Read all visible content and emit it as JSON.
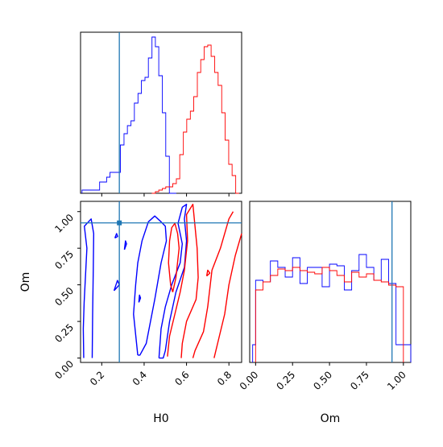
{
  "chart_data": [
    {
      "panel": "H0 marginal",
      "type": "histogram",
      "xlim": [
        0.1,
        0.86
      ],
      "truth_line": 0.283,
      "tick_marks": [
        0.2,
        0.4,
        0.6,
        0.8
      ],
      "series": [
        {
          "color": "#0000ff",
          "bin_edges": [
            0.107,
            0.124,
            0.14,
            0.157,
            0.173,
            0.19,
            0.206,
            0.223,
            0.239,
            0.255,
            0.272,
            0.288,
            0.305,
            0.321,
            0.338,
            0.354,
            0.371,
            0.387,
            0.404,
            0.42,
            0.437,
            0.453,
            0.469,
            0.486,
            0.502,
            0.519,
            0.535,
            0.552
          ],
          "counts": [
            0.02,
            0.02,
            0.02,
            0.02,
            0.02,
            0.07,
            0.07,
            0.1,
            0.13,
            0.13,
            0.13,
            0.3,
            0.37,
            0.42,
            0.45,
            0.56,
            0.62,
            0.7,
            0.72,
            0.84,
            0.97,
            0.91,
            0.73,
            0.5,
            0.23,
            0,
            0
          ]
        },
        {
          "color": "#ff0000",
          "bin_edges": [
            0.436,
            0.453,
            0.469,
            0.486,
            0.502,
            0.519,
            0.535,
            0.552,
            0.568,
            0.585,
            0.601,
            0.618,
            0.634,
            0.651,
            0.667,
            0.683,
            0.7,
            0.716,
            0.733,
            0.749,
            0.766,
            0.782,
            0.799,
            0.815,
            0.832,
            0.848
          ],
          "counts": [
            0,
            0.01,
            0.02,
            0.03,
            0.04,
            0.04,
            0.06,
            0.09,
            0.24,
            0.38,
            0.46,
            0.51,
            0.6,
            0.75,
            0.83,
            0.91,
            0.92,
            0.85,
            0.75,
            0.67,
            0.5,
            0.33,
            0.18,
            0.11,
            0
          ]
        }
      ]
    },
    {
      "panel": "H0 vs Om joint",
      "type": "contour",
      "xlabel": "H0",
      "ylabel": "Om",
      "xlim": [
        0.1,
        0.86
      ],
      "ylim": [
        -0.03,
        1.07
      ],
      "xticks": [
        "0.2",
        "0.4",
        "0.6",
        "0.8"
      ],
      "yticks": [
        "0.00",
        "0.25",
        "0.50",
        "0.75",
        "1.00"
      ],
      "truth_point": [
        0.283,
        0.923
      ],
      "contours": [
        {
          "color": "#0000ff",
          "points": [
            [
              0.115,
              0.0
            ],
            [
              0.113,
              0.2
            ],
            [
              0.117,
              0.38
            ],
            [
              0.124,
              0.58
            ],
            [
              0.13,
              0.75
            ],
            [
              0.118,
              0.9
            ],
            [
              0.15,
              0.95
            ],
            [
              0.162,
              0.85
            ],
            [
              0.16,
              0.6
            ],
            [
              0.157,
              0.3
            ],
            [
              0.155,
              0.0
            ]
          ]
        },
        {
          "color": "#0000ff",
          "points": [
            [
              0.258,
              0.46
            ],
            [
              0.283,
              0.5
            ],
            [
              0.274,
              0.53
            ],
            [
              0.258,
              0.46
            ]
          ]
        },
        {
          "color": "#0000ff",
          "points": [
            [
              0.262,
              0.82
            ],
            [
              0.275,
              0.83
            ],
            [
              0.27,
              0.85
            ],
            [
              0.262,
              0.82
            ]
          ]
        },
        {
          "color": "#0000ff",
          "points": [
            [
              0.37,
              0.02
            ],
            [
              0.35,
              0.3
            ],
            [
              0.36,
              0.5
            ],
            [
              0.37,
              0.65
            ],
            [
              0.39,
              0.8
            ],
            [
              0.42,
              0.93
            ],
            [
              0.45,
              0.97
            ],
            [
              0.48,
              0.93
            ],
            [
              0.5,
              0.9
            ],
            [
              0.505,
              0.8
            ],
            [
              0.48,
              0.65
            ],
            [
              0.45,
              0.4
            ],
            [
              0.43,
              0.25
            ],
            [
              0.41,
              0.1
            ],
            [
              0.38,
              0.02
            ],
            [
              0.37,
              0.02
            ]
          ]
        },
        {
          "color": "#0000ff",
          "points": [
            [
              0.47,
              0.0
            ],
            [
              0.48,
              0.2
            ],
            [
              0.5,
              0.35
            ],
            [
              0.53,
              0.5
            ],
            [
              0.57,
              0.65
            ],
            [
              0.58,
              0.78
            ],
            [
              0.56,
              0.92
            ],
            [
              0.58,
              1.03
            ],
            [
              0.6,
              1.05
            ],
            [
              0.59,
              0.95
            ],
            [
              0.6,
              0.8
            ],
            [
              0.59,
              0.62
            ],
            [
              0.55,
              0.45
            ],
            [
              0.52,
              0.25
            ],
            [
              0.5,
              0.05
            ],
            [
              0.49,
              0.0
            ],
            [
              0.47,
              0.0
            ]
          ]
        },
        {
          "color": "#0000ff",
          "points": [
            [
              0.307,
              0.74
            ],
            [
              0.317,
              0.78
            ],
            [
              0.312,
              0.8
            ],
            [
              0.307,
              0.74
            ]
          ]
        },
        {
          "color": "#0000ff",
          "points": [
            [
              0.375,
              0.38
            ],
            [
              0.383,
              0.41
            ],
            [
              0.378,
              0.43
            ],
            [
              0.375,
              0.38
            ]
          ]
        },
        {
          "color": "#ff0000",
          "points": [
            [
              0.535,
              0.45
            ],
            [
              0.55,
              0.55
            ],
            [
              0.565,
              0.75
            ],
            [
              0.558,
              0.85
            ],
            [
              0.545,
              0.92
            ],
            [
              0.53,
              0.89
            ],
            [
              0.52,
              0.8
            ],
            [
              0.515,
              0.65
            ],
            [
              0.525,
              0.5
            ],
            [
              0.535,
              0.45
            ]
          ]
        },
        {
          "color": "#ff0000",
          "points": [
            [
              0.51,
              0.01
            ],
            [
              0.52,
              0.15
            ],
            [
              0.545,
              0.3
            ],
            [
              0.57,
              0.45
            ],
            [
              0.59,
              0.6
            ],
            [
              0.605,
              0.8
            ],
            [
              0.6,
              0.98
            ],
            [
              0.63,
              1.05
            ],
            [
              0.64,
              0.9
            ],
            [
              0.65,
              0.75
            ],
            [
              0.655,
              0.55
            ],
            [
              0.645,
              0.4
            ],
            [
              0.6,
              0.25
            ],
            [
              0.58,
              0.1
            ],
            [
              0.575,
              0.0
            ]
          ]
        },
        {
          "color": "#ff0000",
          "points": [
            [
              0.63,
              0.0
            ],
            [
              0.64,
              0.05
            ],
            [
              0.68,
              0.18
            ],
            [
              0.7,
              0.35
            ],
            [
              0.72,
              0.6
            ],
            [
              0.76,
              0.75
            ],
            [
              0.8,
              0.95
            ],
            [
              0.82,
              1.0
            ]
          ]
        },
        {
          "color": "#ff0000",
          "points": [
            [
              0.73,
              0.0
            ],
            [
              0.75,
              0.12
            ],
            [
              0.78,
              0.3
            ],
            [
              0.8,
              0.5
            ],
            [
              0.83,
              0.7
            ],
            [
              0.86,
              0.85
            ]
          ]
        },
        {
          "color": "#ff0000",
          "points": [
            [
              0.695,
              0.56
            ],
            [
              0.71,
              0.58
            ],
            [
              0.7,
              0.6
            ],
            [
              0.695,
              0.56
            ]
          ]
        }
      ]
    },
    {
      "panel": "Om marginal",
      "type": "histogram",
      "xlabel": "Om",
      "xlim": [
        -0.04,
        1.05
      ],
      "xticks": [
        "0.00",
        "0.25",
        "0.50",
        "0.75",
        "1.00"
      ],
      "truth_line": 0.923,
      "series": [
        {
          "color": "#0000ff",
          "bin_edges": [
            -0.02,
            0.0,
            0.05,
            0.1,
            0.15,
            0.2,
            0.25,
            0.3,
            0.35,
            0.4,
            0.45,
            0.5,
            0.55,
            0.6,
            0.65,
            0.7,
            0.75,
            0.8,
            0.85,
            0.9,
            0.95,
            1.0,
            1.05
          ],
          "counts": [
            0.11,
            0.51,
            0.5,
            0.63,
            0.59,
            0.53,
            0.65,
            0.49,
            0.59,
            0.59,
            0.47,
            0.61,
            0.6,
            0.45,
            0.57,
            0.67,
            0.59,
            0.51,
            0.64,
            0.49,
            0.11,
            0.11
          ]
        },
        {
          "color": "#ff0000",
          "bin_edges": [
            0.0,
            0.05,
            0.1,
            0.15,
            0.2,
            0.25,
            0.3,
            0.35,
            0.4,
            0.45,
            0.5,
            0.55,
            0.6,
            0.65,
            0.7,
            0.75,
            0.8,
            0.85,
            0.9,
            0.95,
            1.0
          ],
          "counts": [
            0.45,
            0.5,
            0.54,
            0.58,
            0.57,
            0.59,
            0.57,
            0.56,
            0.55,
            0.59,
            0.57,
            0.54,
            0.5,
            0.56,
            0.53,
            0.55,
            0.51,
            0.5,
            0.48,
            0.47
          ]
        }
      ]
    }
  ]
}
